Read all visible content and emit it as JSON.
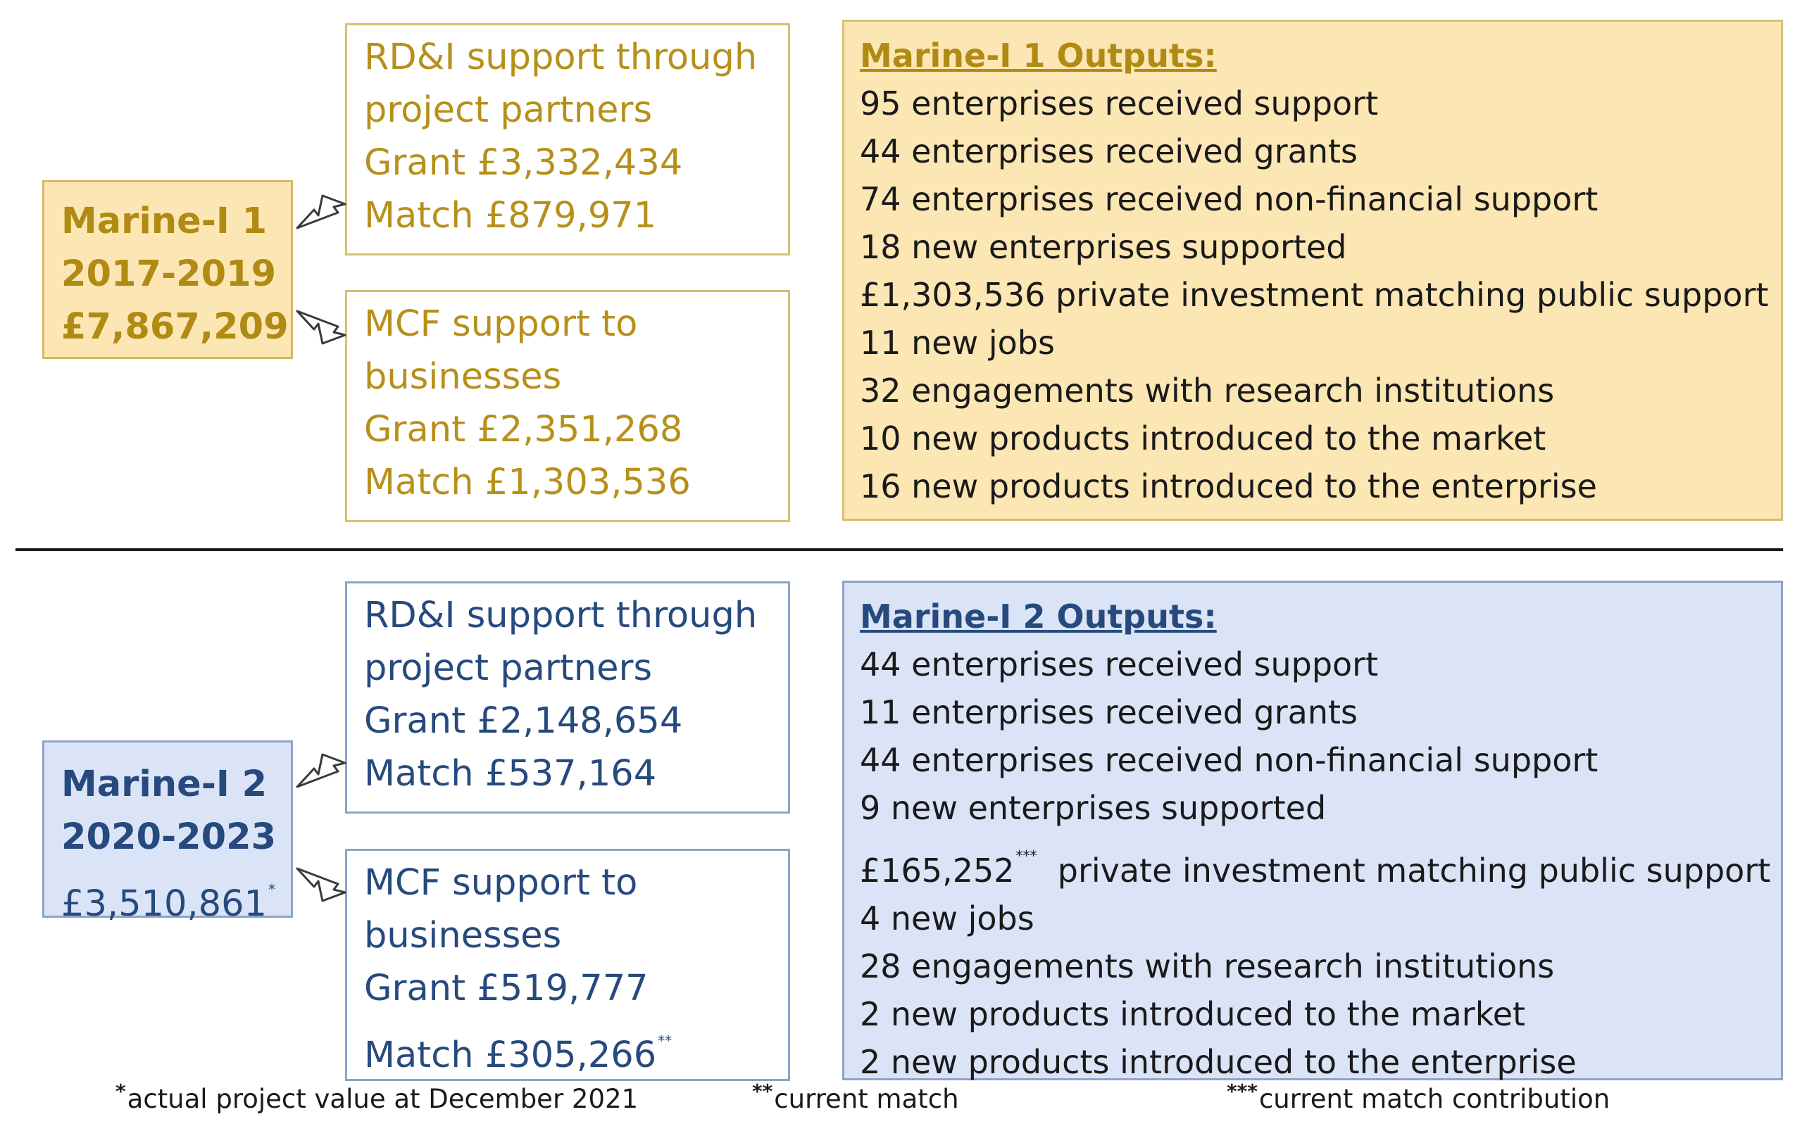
{
  "program1": {
    "name": "Marine-I 1",
    "years": "2017-2019",
    "value": "£7,867,209"
  },
  "program1_rdi": {
    "title_line1": "RD&I support through",
    "title_line2": "project partners",
    "grant": "Grant £3,332,434",
    "match": "Match £879,971"
  },
  "program1_mcf": {
    "title_line1": "MCF support to",
    "title_line2": "businesses",
    "grant": "Grant £2,351,268",
    "match": "Match £1,303,536"
  },
  "outputs1": {
    "title": "Marine-I 1 Outputs:",
    "items": [
      "95 enterprises received support",
      "44 enterprises received grants",
      "74 enterprises received non-financial support",
      "18 new enterprises supported",
      "£1,303,536 private investment matching public support",
      "11 new jobs",
      "32 engagements with research institutions",
      "10 new products introduced to the market",
      "16 new products introduced to the enterprise"
    ]
  },
  "program2": {
    "name": "Marine-I 2",
    "years": "2020-2023",
    "value": "£3,510,861",
    "value_mark": "*"
  },
  "program2_rdi": {
    "title_line1": "RD&I support through",
    "title_line2": "project partners",
    "grant": "Grant £2,148,654",
    "match": "Match £537,164"
  },
  "program2_mcf": {
    "title_line1": "MCF support to",
    "title_line2": "businesses",
    "grant": "Grant £519,777",
    "match": "Match £305,266",
    "match_mark": "**"
  },
  "outputs2": {
    "title": "Marine-I 2 Outputs:",
    "items": [
      "44 enterprises received support",
      "11 enterprises received grants",
      "44 enterprises received non-financial support",
      "9 new enterprises supported",
      "£165,252",
      "4 new jobs",
      "28 engagements with research institutions",
      "2 new products introduced to the market",
      "2 new products introduced to the enterprise"
    ],
    "investment_mark": "***",
    "investment_suffix": "private investment matching public support"
  },
  "footnotes": {
    "f1_mark": "*",
    "f1": "actual project value at December 2021",
    "f2_mark": "**",
    "f2": "current match",
    "f3_mark": "***",
    "f3": "current match contribution"
  },
  "colors": {
    "gold_fill": "#fbe6b4",
    "gold_text": "#b08a12",
    "blue_fill": "#dbe4f6",
    "blue_text": "#264a7e"
  }
}
